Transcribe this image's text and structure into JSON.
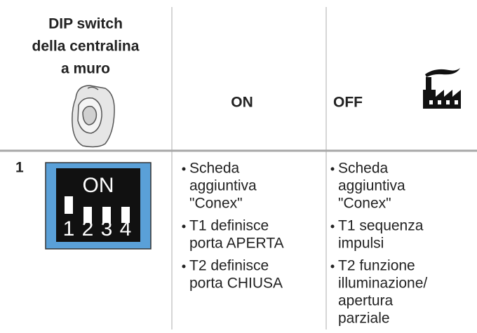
{
  "table": {
    "header": {
      "switch_column": [
        "DIP switch",
        "della centralina",
        "a muro"
      ],
      "on": "ON",
      "off": "OFF"
    },
    "rows": [
      {
        "number": "1",
        "dip_switch": {
          "label": "ON",
          "positions": [
            "1",
            "2",
            "3",
            "4"
          ]
        },
        "on": [
          [
            "Scheda",
            "aggiuntiva",
            "\"Conex\""
          ],
          [
            "T1 definisce",
            "porta APERTA"
          ],
          [
            "T2 definisce",
            "porta CHIUSA"
          ]
        ],
        "off": [
          [
            "Scheda",
            "aggiuntiva",
            "\"Conex\""
          ],
          [
            "T1 sequenza",
            "impulsi"
          ],
          [
            "T2 funzione",
            "illuminazione/",
            "apertura",
            "parziale"
          ]
        ]
      }
    ]
  }
}
